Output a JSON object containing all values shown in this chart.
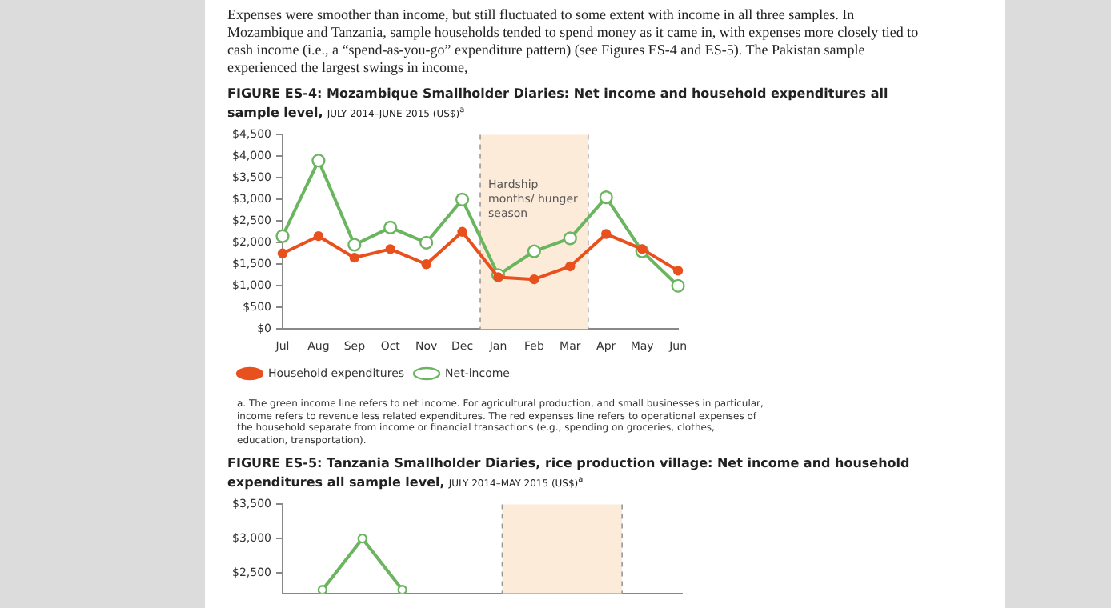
{
  "chart_data": [
    {
      "type": "line",
      "title": "FIGURE ES-4: Mozambique Smallholder Diaries: Net income and household expenditures all sample level,",
      "subtitle": "JULY 2014–JUNE 2015 (US$)$^{a}$",
      "categories": [
        "Jul",
        "Aug",
        "Sep",
        "Oct",
        "Nov",
        "Dec",
        "Jan",
        "Feb",
        "Mar",
        "Apr",
        "May",
        "Jun"
      ],
      "series": [
        {
          "name": "Household expenditures",
          "color": "#e8501e",
          "values": [
            1750,
            2150,
            1650,
            1850,
            1500,
            2250,
            1200,
            1150,
            1450,
            2200,
            1850,
            1350
          ]
        },
        {
          "name": "Net-income",
          "color": "#6cb560",
          "values": [
            2150,
            3900,
            1950,
            2350,
            2000,
            3000,
            1250,
            1800,
            2100,
            3050,
            1800,
            1000
          ]
        }
      ],
      "ylim": [
        0,
        4500
      ],
      "yticks": [
        {
          "value": 0,
          "label": "$0"
        },
        {
          "value": 500,
          "label": "$500"
        },
        {
          "value": 1000,
          "label": "$1,000"
        },
        {
          "value": 1500,
          "label": "$1,500"
        },
        {
          "value": 2000,
          "label": "$2,000"
        },
        {
          "value": 2500,
          "label": "$2,500"
        },
        {
          "value": 3000,
          "label": "$3,000"
        },
        {
          "value": 3500,
          "label": "$3,500"
        },
        {
          "value": 4000,
          "label": "$4,000"
        },
        {
          "value": 4500,
          "label": "$4,500"
        }
      ],
      "bands": [
        {
          "axis": "x",
          "from": "Jan",
          "to": "Mar",
          "label": "Hardship months/ hunger season",
          "color": "#fcebd8"
        }
      ],
      "legend": "bottom",
      "marker": "circle",
      "annotations": [
        "Expenses were smoother than income, but still fluctuated to some extent with income in all three samples. In Mozambique and Tanzania, sample households tended to spend money as it came in, with expenses more closely tied to cash income (i.e., a “spend-as-you-go” expenditure pattern) (see Figures ES-4 and ES-5). The Pakistan sample experienced the largest swings in income,",
        "a. The green income line refers to net income. For agricultural production, and small businesses in particular, income refers to revenue less related expenditures. The red expenses line refers to operational expenses of the household separate from income or financial transactions (e.g., spending on groceries, clothes, education, transportation)."
      ]
    },
    {
      "type": "line",
      "title": "FIGURE ES-5: Tanzania Smallholder Diaries, rice production village: Net income and household expenditures all sample level,",
      "subtitle": "JULY 2014–MAY 2015 (US$)$^{a}$",
      "categories": [
        null,
        null,
        null,
        null,
        null,
        null,
        null,
        null,
        null,
        null,
        null
      ],
      "series": [
        {
          "color": "#6cb560",
          "values": [
            null,
            2250,
            3000,
            2250,
            null,
            null,
            null,
            null,
            null,
            null,
            null
          ]
        }
      ],
      "ylim": [
        2200,
        3500
      ],
      "yticks": [
        {
          "value": 2500,
          "label": "$2,500"
        },
        {
          "value": 3000,
          "label": "$3,000"
        },
        {
          "value": 3500,
          "label": "$3,500"
        }
      ],
      "tick_labels": "y",
      "marker": "circle"
    }
  ]
}
